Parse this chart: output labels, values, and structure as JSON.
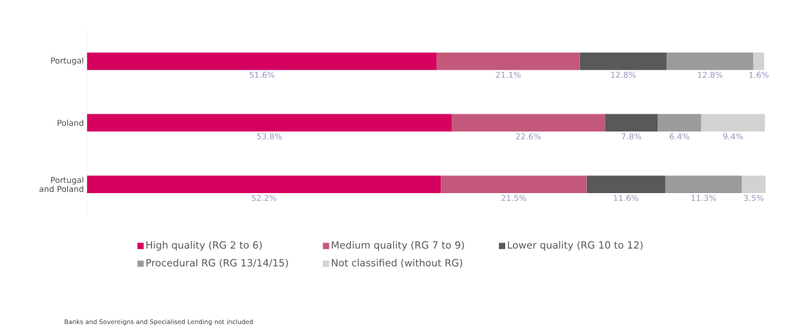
{
  "chart_data": {
    "type": "bar",
    "orientation": "horizontal",
    "stacked": true,
    "legend": "bottom",
    "categories": [
      "Portugal",
      "Poland",
      "Portugal and Poland"
    ],
    "series": [
      {
        "name": "High quality (RG 2 to 6)",
        "color": "#d6005f",
        "values": [
          51.6,
          53.8,
          52.2
        ],
        "value_labels": [
          "51.6%",
          "53.8%",
          "52.2%"
        ]
      },
      {
        "name": "Medium quality (RG 7 to 9)",
        "color": "#c4587a",
        "values": [
          21.1,
          22.6,
          21.5
        ],
        "value_labels": [
          "21.1%",
          "22.6%",
          "21.5%"
        ]
      },
      {
        "name": "Lower quality (RG 10 to 12)",
        "color": "#595959",
        "values": [
          12.8,
          7.8,
          11.6
        ],
        "value_labels": [
          "12.8%",
          "7.8%",
          "11.6%"
        ]
      },
      {
        "name": "Procedural RG (RG 13/14/15)",
        "color": "#9b9b9b",
        "values": [
          12.8,
          6.4,
          11.3
        ],
        "value_labels": [
          "12.8%",
          "6.4%",
          "11.3%"
        ]
      },
      {
        "name": "Not classified (without RG)",
        "color": "#d2d2d2",
        "values": [
          1.6,
          9.4,
          3.5
        ],
        "value_labels": [
          "1.6%",
          "9.4%",
          "3.5%"
        ]
      }
    ],
    "annotations": [
      "Banks and Sovereigns and Specialised Lending not included"
    ]
  }
}
